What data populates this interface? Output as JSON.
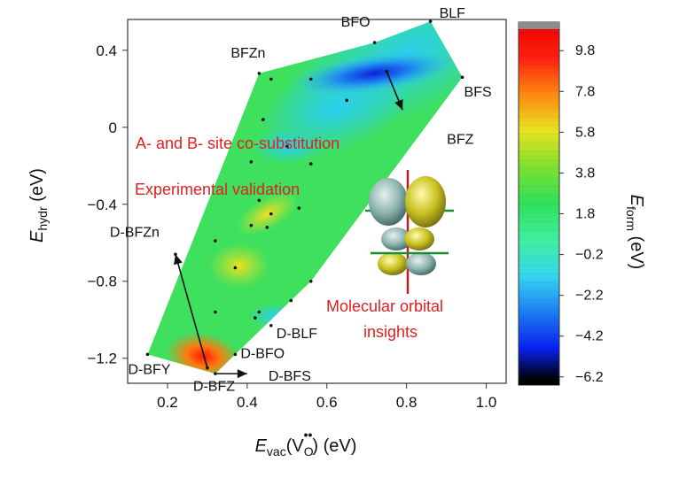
{
  "chart_data": {
    "type": "heatmap",
    "title": "",
    "xlabel": {
      "main": "E",
      "sub": "vac",
      "arg": "(V",
      "arg_sub": "O",
      "arg_sup": "••",
      "unit": ") (eV)"
    },
    "ylabel": {
      "main": "E",
      "sub": "hydr",
      "unit": " (eV)"
    },
    "xlim": [
      0.1,
      1.05
    ],
    "ylim": [
      -1.33,
      0.56
    ],
    "x_ticks": [
      0.2,
      0.4,
      0.6,
      0.8,
      1.0
    ],
    "x_tick_labels": [
      "0.2",
      "0.4",
      "0.6",
      "0.8",
      "1.0"
    ],
    "y_ticks": [
      0.4,
      0,
      -0.4,
      -0.8,
      -1.2
    ],
    "y_tick_labels": [
      "0.4",
      "0",
      "−0.4",
      "−0.8",
      "−1.2"
    ],
    "colorbar": {
      "label": {
        "main": "E",
        "sub": "form",
        "unit": " (eV)"
      },
      "range": [
        -6.6,
        11.2
      ],
      "ticks": [
        9.8,
        7.8,
        5.8,
        3.8,
        1.8,
        -0.2,
        -2.2,
        -4.2,
        -6.2
      ],
      "tick_labels": [
        "9.8",
        "7.8",
        "5.8",
        "3.8",
        "1.8",
        "−0.2",
        "−2.2",
        "−4.2",
        "−6.2"
      ],
      "colors": [
        "#000000",
        "#0a1ff0",
        "#1d7df3",
        "#35d6f0",
        "#40f0a0",
        "#30e05a",
        "#7de030",
        "#e9e320",
        "#ff8a10",
        "#ff2010",
        "#ee0000",
        "#8c8c8c"
      ]
    },
    "region_boundary": [
      [
        0.15,
        -1.18
      ],
      [
        0.43,
        0.28
      ],
      [
        0.72,
        0.44
      ],
      [
        0.86,
        0.55
      ],
      [
        0.94,
        0.26
      ],
      [
        0.56,
        -0.8
      ],
      [
        0.32,
        -1.28
      ]
    ],
    "points": [
      {
        "name": "BFO",
        "x": 0.72,
        "y": 0.44
      },
      {
        "name": "BLF",
        "x": 0.86,
        "y": 0.55
      },
      {
        "name": "BFZn",
        "x": 0.43,
        "y": 0.28
      },
      {
        "name": "BFS",
        "x": 0.94,
        "y": 0.26
      },
      {
        "name": "BFZ",
        "x": 0.75,
        "y": 0.29
      },
      {
        "name": "D-BFZn",
        "x": 0.22,
        "y": -0.66
      },
      {
        "name": "D-BLF",
        "x": 0.46,
        "y": -1.03
      },
      {
        "name": "D-BFO",
        "x": 0.37,
        "y": -1.18
      },
      {
        "name": "D-BFY",
        "x": 0.15,
        "y": -1.18
      },
      {
        "name": "D-BFZ",
        "x": 0.3,
        "y": -1.25
      },
      {
        "name": "D-BFS",
        "x": 0.32,
        "y": -1.28
      },
      {
        "name": "",
        "x": 0.46,
        "y": 0.25
      },
      {
        "name": "",
        "x": 0.56,
        "y": 0.25
      },
      {
        "name": "",
        "x": 0.65,
        "y": 0.14
      },
      {
        "name": "",
        "x": 0.44,
        "y": 0.04
      },
      {
        "name": "",
        "x": 0.5,
        "y": -0.1
      },
      {
        "name": "",
        "x": 0.41,
        "y": -0.18
      },
      {
        "name": "",
        "x": 0.56,
        "y": -0.19
      },
      {
        "name": "",
        "x": 0.43,
        "y": -0.38
      },
      {
        "name": "",
        "x": 0.46,
        "y": -0.45
      },
      {
        "name": "",
        "x": 0.53,
        "y": -0.42
      },
      {
        "name": "",
        "x": 0.41,
        "y": -0.51
      },
      {
        "name": "",
        "x": 0.45,
        "y": -0.52
      },
      {
        "name": "",
        "x": 0.32,
        "y": -0.59
      },
      {
        "name": "",
        "x": 0.37,
        "y": -0.73
      },
      {
        "name": "",
        "x": 0.56,
        "y": -0.8
      },
      {
        "name": "",
        "x": 0.32,
        "y": -0.96
      },
      {
        "name": "",
        "x": 0.43,
        "y": -0.96
      },
      {
        "name": "",
        "x": 0.51,
        "y": -0.9
      },
      {
        "name": "",
        "x": 0.42,
        "y": -0.99
      }
    ],
    "annotations": [
      {
        "text": "A- and B- site co-substitution",
        "color": "#e02020"
      },
      {
        "text": "Experimental validation",
        "color": "#e02020"
      },
      {
        "text": "Molecular orbital",
        "color": "#e02020"
      },
      {
        "text": "insights",
        "color": "#e02020"
      }
    ],
    "arrows": [
      {
        "from": "BFZ",
        "to": [
          0.79,
          0.09
        ]
      },
      {
        "from": "D-BFZ",
        "to": [
          0.22,
          -0.66
        ]
      },
      {
        "from": "D-BFS",
        "to": [
          0.4,
          -1.28
        ]
      }
    ]
  }
}
